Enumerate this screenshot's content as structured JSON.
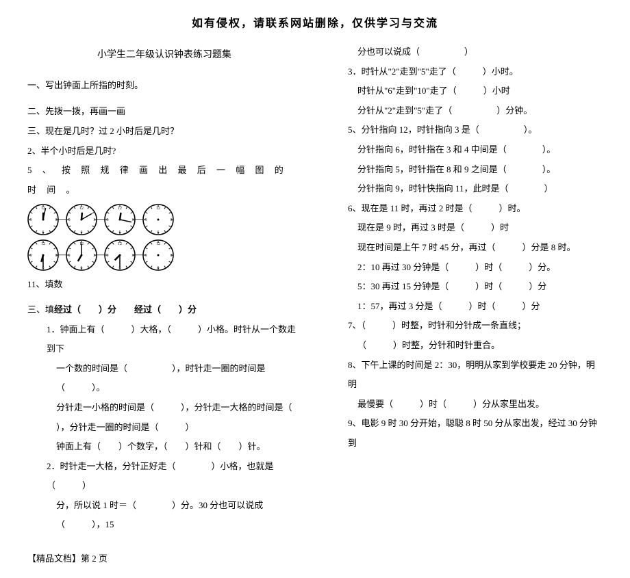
{
  "header": "如有侵权，请联系网站删除，仅供学习与交流",
  "title": "小学生二年级认识钟表练习题集",
  "left": {
    "s1": "一、写出钟面上所指的时刻。",
    "s2": "二、先拨一拨，再画一画",
    "s3": "三、现在是几时？过 2 小时后是几时？",
    "s4": "2、半个小时后是几时?",
    "s5": "5 、 按 照 规 律 画 出 最 后 一 幅 图 的 时 间 。",
    "s11": "11、填数",
    "sanLabel": "三、填",
    "sanLine": "经过（　　）分　　经过（　　）分",
    "q1a": "1．钟面上有（　　　）大格，（　　　）小格。时针从一个数走到下",
    "q1b": "一个数的时间是（　　　　　），时针走一圈的时间是（　　　）。",
    "q1c": "分针走一小格的时间是（　　　），分针走一大格的时间是（",
    "q1d": "），分针走一圈的时间是（　　　）",
    "q1e": "钟面上有（　　）个数字，（　　）针和（　　）针。",
    "q2a": "2．时针走一大格，分针正好走（　　　　）小格，也就是（　　　）",
    "q2b": "分，所以说 1 时＝（　　　　）分。30 分也可以说成（　　　），15"
  },
  "right": {
    "r0": "分也可以说成（　　　　　）",
    "r3a": "3．时针从\"2\"走到\"5\"走了（　　　）小时。",
    "r3b": "时针从\"6\"走到\"10\"走了（　　　）小时",
    "r3c": "分针从\"2\"走到\"5\"走了（　　　　　）分钟。",
    "r5a": "5、分针指向 12，时针指向 3 是（　　　　　）。",
    "r5b": "分针指向 6，时针指在 3 和 4 中间是（　　　　）。",
    "r5c": "分针指向 5，时针指在 8 和 9 之间是（　　　　）。",
    "r5d": "分针指向 9，时针快指向 11，此时是（　　　　）",
    "r6a": "6、现在是 11 时，再过 2 时是（　　　）时。",
    "r6b": "现在是 9 时，再过 3 时是（　　　）时",
    "r6c": "现在时间是上午 7 时 45 分，再过（　　　）分是 8 时。",
    "r6d": "2：10 再过 30 分钟是（　　　）时（　　　）分。",
    "r6e": "5：30 再过 15 分钟是（　　　）时（　　　）分",
    "r6f": "1：57，再过 3 分是（　　　）时（　　　）分",
    "r7a": "7、（　　　）时整，时针和分针成一条直线；",
    "r7b": "（　　　）时整，分针和时针重合。",
    "r8a": "8、下午上课的时间是 2：30，明明从家到学校要走 20 分钟，明明",
    "r8b": "最慢要（　　　）时（　　　）分从家里出发。",
    "r9": "9、电影 9 时 30 分开始，聪聪 8 时 50 分从家出发，经过 30 分钟到"
  },
  "footer": "【精品文档】第 2 页",
  "clocks": {
    "row1": [
      {
        "h": 12,
        "m": 2
      },
      {
        "h": 12,
        "m": 10
      },
      {
        "h": 12,
        "m": 17
      },
      {
        "h": 0,
        "m": 0,
        "empty": true
      }
    ],
    "row2": [
      {
        "h": 6,
        "m": 30
      },
      {
        "h": 7,
        "m": 0
      },
      {
        "h": 7,
        "m": 30
      },
      {
        "h": 0,
        "m": 0,
        "empty": true
      }
    ],
    "size": 46,
    "stroke": "#000000",
    "face": "#ffffff"
  }
}
